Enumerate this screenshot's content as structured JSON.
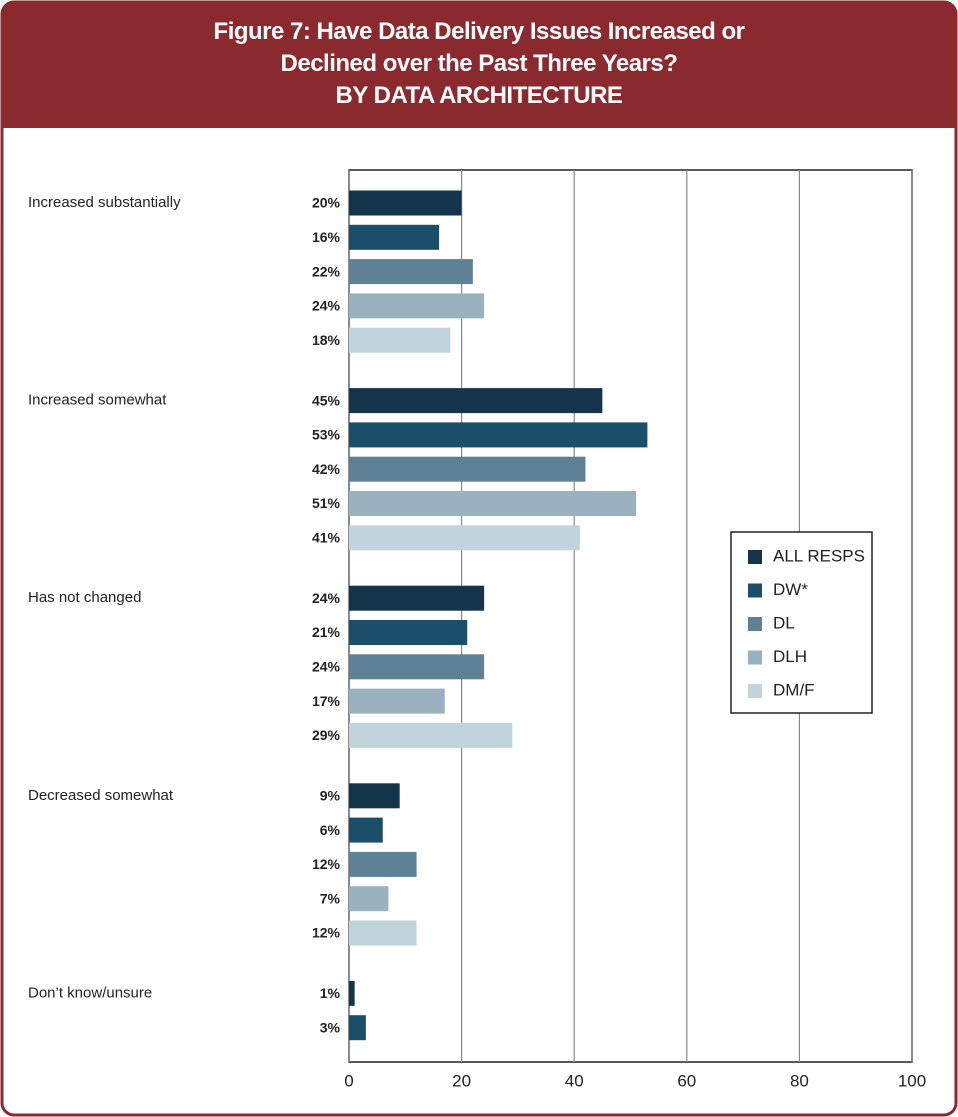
{
  "chart_data": {
    "type": "bar",
    "orientation": "horizontal",
    "title": "Figure 7: Have Data Delivery Issues Increased or Declined over the Past Three Years?",
    "subtitle": "BY DATA ARCHITECTURE",
    "categories": [
      "Increased substantially",
      "Increased somewhat",
      "Has not changed",
      "Decreased somewhat",
      "Don’t know/unsure"
    ],
    "series": [
      {
        "name": "ALL RESPS",
        "color": "#13344a",
        "values": [
          20,
          45,
          24,
          9,
          1
        ],
        "value_labels": [
          "20%",
          "45%",
          "24%",
          "9%",
          "1%"
        ]
      },
      {
        "name": "DW*",
        "color": "#1b4f69",
        "values": [
          16,
          53,
          21,
          6,
          3
        ],
        "value_labels": [
          "16%",
          "53%",
          "21%",
          "6%",
          "3%"
        ]
      },
      {
        "name": "DL",
        "color": "#5f8196",
        "values": [
          22,
          42,
          24,
          12,
          null
        ],
        "value_labels": [
          "22%",
          "42%",
          "24%",
          "12%",
          null
        ]
      },
      {
        "name": "DLH",
        "color": "#9ab1c0",
        "values": [
          24,
          51,
          17,
          7,
          null
        ],
        "value_labels": [
          "24%",
          "51%",
          "17%",
          "7%",
          null
        ]
      },
      {
        "name": "DM/F",
        "color": "#c2d4db",
        "values": [
          18,
          41,
          29,
          12,
          null
        ],
        "value_labels": [
          "18%",
          "41%",
          "29%",
          "12%",
          null
        ]
      }
    ],
    "xlim": [
      0,
      100
    ],
    "xticks": [
      0,
      20,
      40,
      60,
      80,
      100
    ],
    "grid": true,
    "legend": "right"
  }
}
